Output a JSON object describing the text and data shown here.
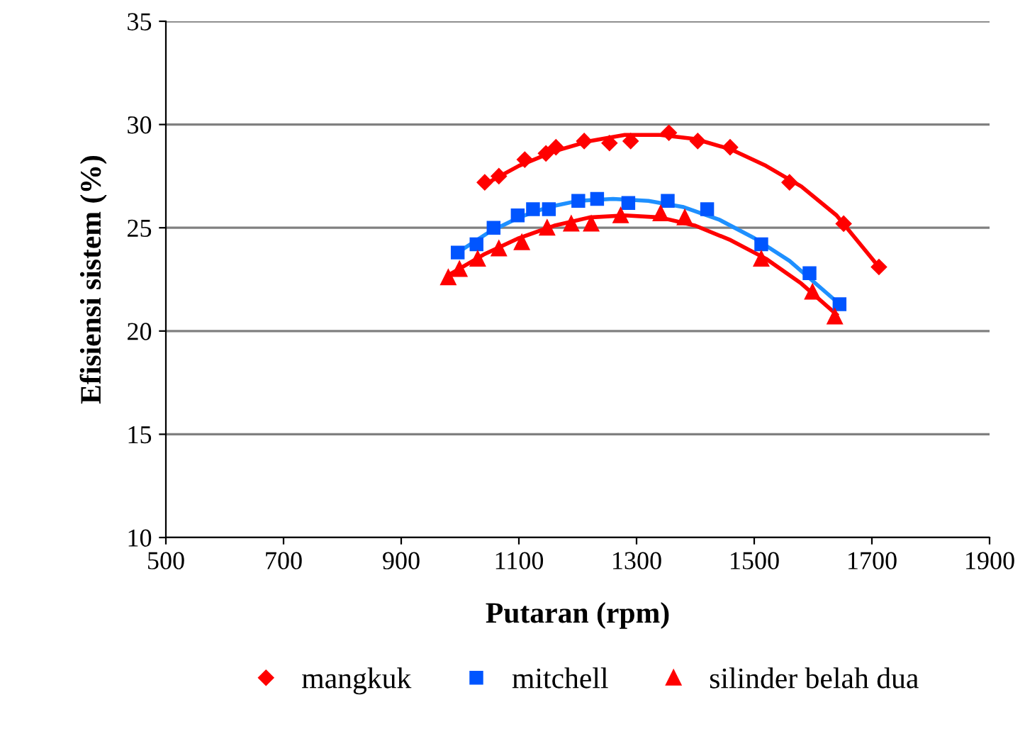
{
  "chart_data": {
    "type": "scatter",
    "xlabel": "Putaran (rpm)",
    "ylabel": "Efisiensi sistem (%)",
    "xlim": [
      500,
      1900
    ],
    "xticks": [
      500,
      700,
      900,
      1100,
      1300,
      1500,
      1700,
      1900
    ],
    "ylim": [
      10,
      35
    ],
    "yticks": [
      10,
      15,
      20,
      25,
      30,
      35
    ],
    "grid": "y",
    "legend": "bottom",
    "series": [
      {
        "name": "mangkuk",
        "color": "#ff0000",
        "marker": "diamond",
        "x": [
          1042,
          1066,
          1110,
          1146,
          1163,
          1211,
          1254,
          1290,
          1355,
          1404,
          1459,
          1560,
          1652,
          1712
        ],
        "values": [
          27.2,
          27.5,
          28.3,
          28.6,
          28.9,
          29.2,
          29.1,
          29.2,
          29.6,
          29.2,
          28.9,
          27.2,
          25.2,
          23.1
        ]
      },
      {
        "name": "mitchell",
        "color": "#0055ff",
        "marker": "square",
        "x": [
          996,
          1028,
          1057,
          1098,
          1124,
          1151,
          1201,
          1233,
          1286,
          1353,
          1420,
          1512,
          1594,
          1645
        ],
        "values": [
          23.8,
          24.2,
          25.0,
          25.6,
          25.9,
          25.9,
          26.3,
          26.4,
          26.2,
          26.3,
          25.9,
          24.2,
          22.8,
          21.3
        ]
      },
      {
        "name": "silinder belah dua",
        "color": "#ff0000",
        "marker": "triangle",
        "x": [
          980,
          999,
          1030,
          1066,
          1105,
          1148,
          1189,
          1223,
          1273,
          1341,
          1382,
          1512,
          1599,
          1637
        ],
        "values": [
          22.6,
          23.0,
          23.5,
          24.0,
          24.3,
          25.0,
          25.2,
          25.2,
          25.6,
          25.7,
          25.5,
          23.5,
          21.9,
          20.7
        ]
      },
      {
        "type": "line",
        "color": "#ff0000",
        "x": [
          1042,
          1100,
          1160,
          1220,
          1280,
          1340,
          1400,
          1460,
          1520,
          1580,
          1640,
          1712
        ],
        "values": [
          27.1,
          28.0,
          28.7,
          29.2,
          29.5,
          29.5,
          29.3,
          28.8,
          28.0,
          27.0,
          25.6,
          23.1
        ]
      },
      {
        "type": "line",
        "color": "#1e90ff",
        "x": [
          996,
          1050,
          1100,
          1150,
          1200,
          1260,
          1320,
          1380,
          1440,
          1500,
          1560,
          1645
        ],
        "values": [
          23.8,
          24.8,
          25.5,
          26.0,
          26.3,
          26.4,
          26.3,
          26.0,
          25.4,
          24.5,
          23.4,
          21.3
        ]
      },
      {
        "type": "line",
        "color": "#ff0000",
        "x": [
          980,
          1040,
          1100,
          1160,
          1220,
          1280,
          1340,
          1400,
          1460,
          1520,
          1580,
          1640
        ],
        "values": [
          22.7,
          23.7,
          24.5,
          25.1,
          25.5,
          25.6,
          25.5,
          25.1,
          24.4,
          23.5,
          22.3,
          20.8
        ]
      }
    ]
  }
}
